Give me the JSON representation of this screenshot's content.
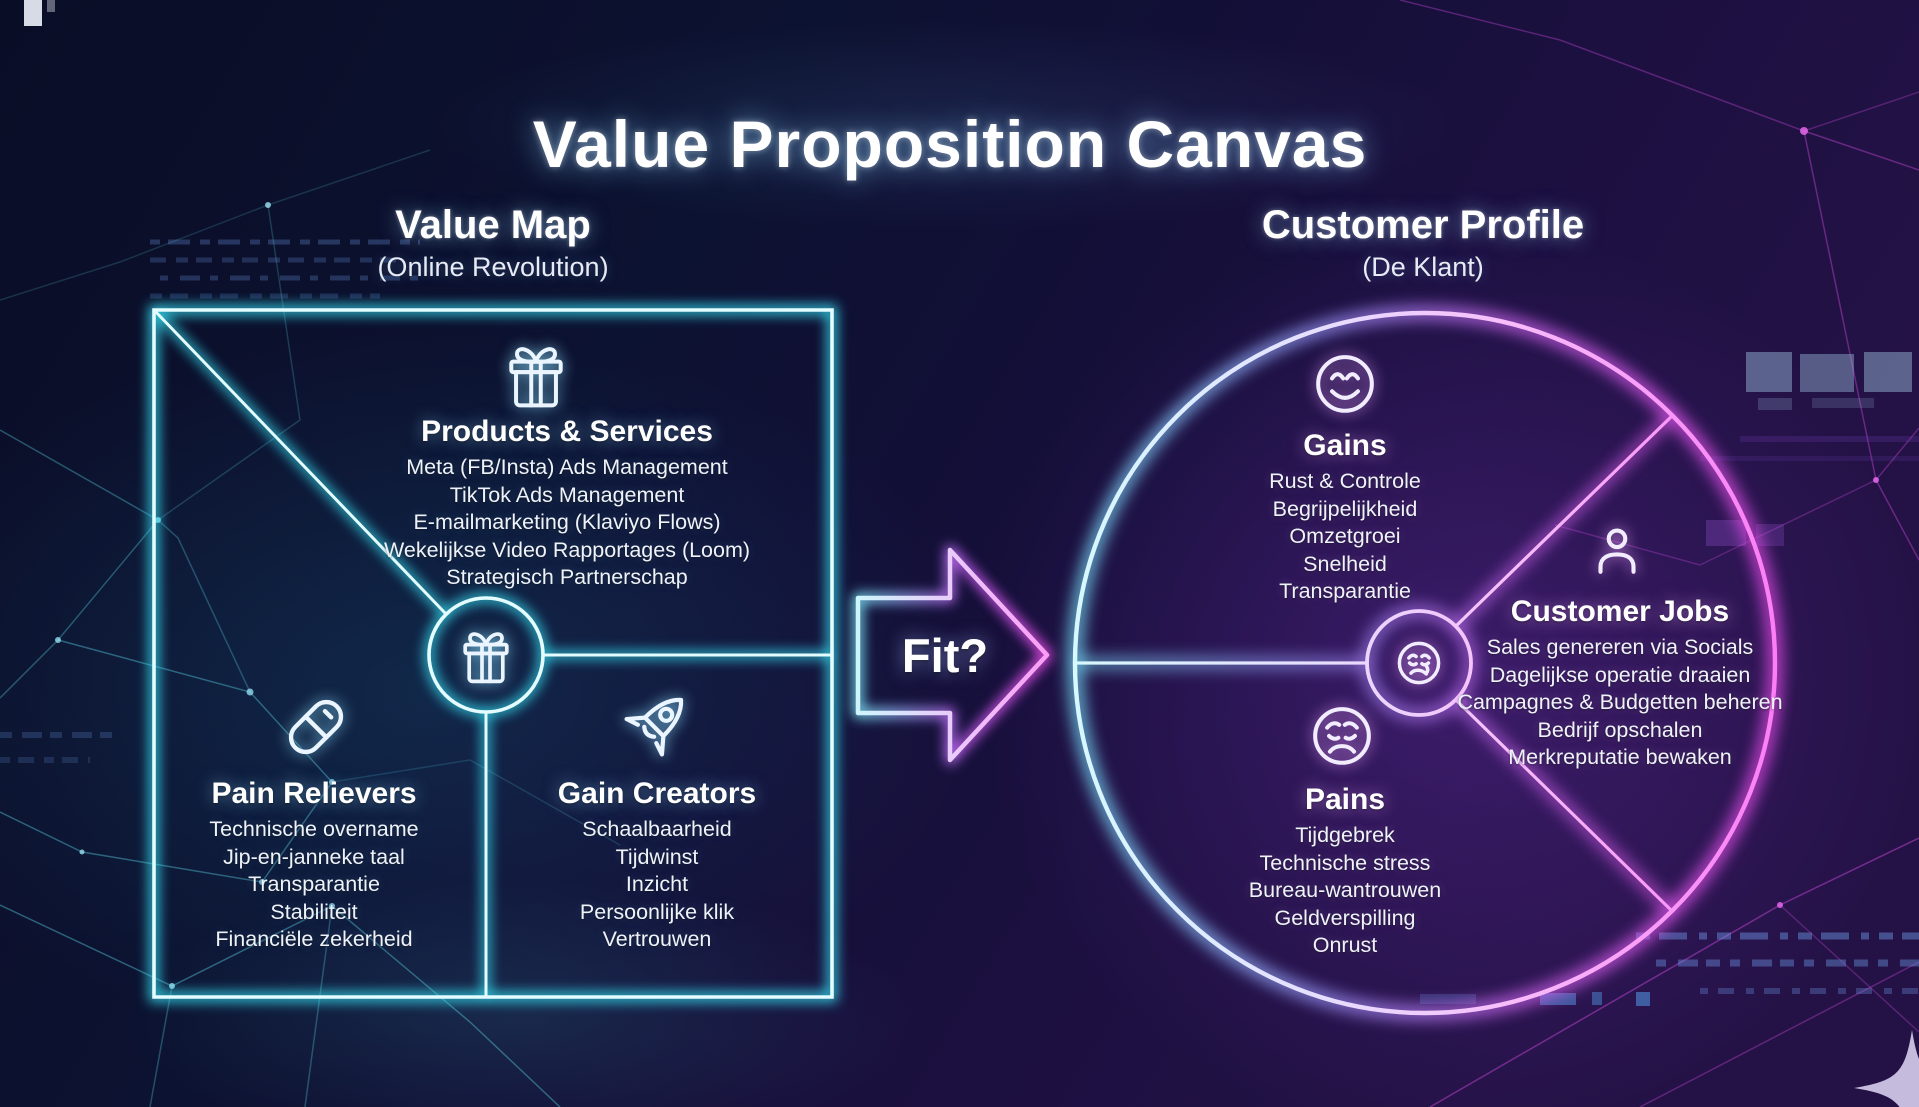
{
  "title": "Value Proposition Canvas",
  "fit": {
    "label": "Fit?"
  },
  "colors": {
    "neon_cyan": "#46e0f2",
    "neon_magenta": "#ee49f0",
    "text": "#f4f7fd",
    "background": "#0c1030"
  },
  "value_map": {
    "heading": "Value Map",
    "subtitle": "(Online Revolution)",
    "hub_icon": "gift-icon",
    "products_services": {
      "icon": "gift-icon",
      "heading": "Products & Services",
      "items": [
        "Meta (FB/Insta) Ads Management",
        "TikTok Ads Management",
        "E-mailmarketing (Klaviyo Flows)",
        "Wekelijkse Video Rapportages (Loom)",
        "Strategisch Partnerschap"
      ]
    },
    "pain_relievers": {
      "icon": "pill-icon",
      "heading": "Pain Relievers",
      "items": [
        "Technische overname",
        "Jip-en-janneke taal",
        "Transparantie",
        "Stabiliteit",
        "Financiële zekerheid"
      ]
    },
    "gain_creators": {
      "icon": "rocket-icon",
      "heading": "Gain Creators",
      "items": [
        "Schaalbaarheid",
        "Tijdwinst",
        "Inzicht",
        "Persoonlijke klik",
        "Vertrouwen"
      ]
    }
  },
  "customer_profile": {
    "heading": "Customer Profile",
    "subtitle": "(De Klant)",
    "hub_icon": "weary-face-icon",
    "gains": {
      "icon": "happy-face-icon",
      "heading": "Gains",
      "items": [
        "Rust & Controle",
        "Begrijpelijkheid",
        "Omzetgroei",
        "Snelheid",
        "Transparantie"
      ]
    },
    "customer_jobs": {
      "icon": "person-icon",
      "heading": "Customer Jobs",
      "items": [
        "Sales genereren via Socials",
        "Dagelijkse operatie draaien",
        "Campagnes & Budgetten beheren",
        "Bedrijf opschalen",
        "Merkreputatie bewaken"
      ]
    },
    "pains": {
      "icon": "sad-face-icon",
      "heading": "Pains",
      "items": [
        "Tijdgebrek",
        "Technische stress",
        "Bureau-wantrouwen",
        "Geldverspilling",
        "Onrust"
      ]
    }
  }
}
